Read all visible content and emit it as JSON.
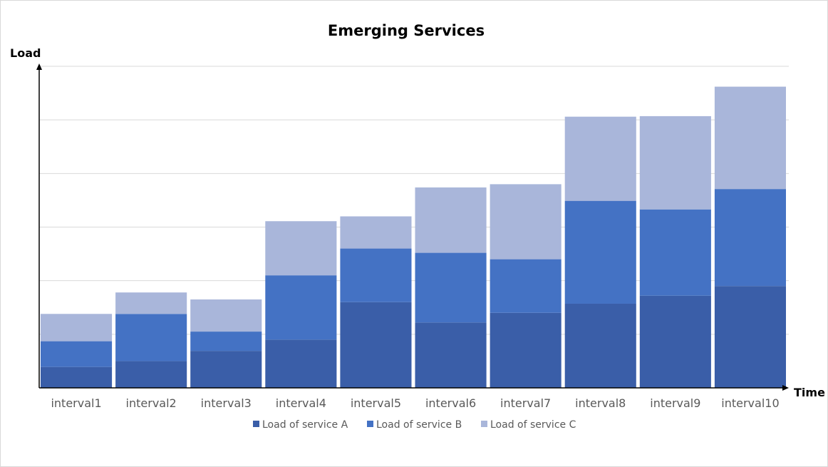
{
  "chart_data": {
    "type": "bar",
    "stacked": true,
    "title": "Emerging Services",
    "xlabel": "Time",
    "ylabel": "Load",
    "categories": [
      "interval1",
      "interval2",
      "interval3",
      "interval4",
      "interval5",
      "interval6",
      "interval7",
      "interval8",
      "interval9",
      "interval10"
    ],
    "series": [
      {
        "name": "Load of service A",
        "color": "#3a5ea8",
        "values": [
          0.39,
          0.5,
          0.69,
          0.9,
          1.6,
          1.22,
          1.4,
          1.57,
          1.72,
          1.9
        ]
      },
      {
        "name": "Load of service B",
        "color": "#4472c4",
        "values": [
          0.48,
          0.88,
          0.36,
          1.2,
          1.0,
          1.3,
          1.0,
          1.92,
          1.61,
          1.81
        ]
      },
      {
        "name": "Load of service C",
        "color": "#a9b6da",
        "values": [
          0.51,
          0.4,
          0.6,
          1.01,
          0.6,
          1.22,
          1.4,
          1.57,
          1.74,
          1.91
        ]
      }
    ],
    "ylim": [
      0,
      6
    ],
    "yticks_shown": false,
    "grid": true,
    "legend_position": "bottom"
  }
}
